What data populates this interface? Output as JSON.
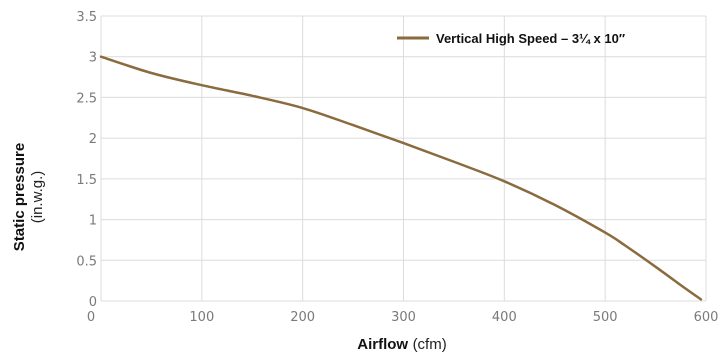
{
  "chart_data": {
    "type": "line",
    "xlabel_bold": "Airflow",
    "xlabel_unit": "(cfm)",
    "ylabel_bold": "Static pressure",
    "ylabel_unit": "(in.w.g.)",
    "xlim": [
      0,
      600
    ],
    "ylim": [
      0,
      3.5
    ],
    "x_ticks": [
      {
        "value": 0,
        "label": "0"
      },
      {
        "value": 100,
        "label": "100"
      },
      {
        "value": 200,
        "label": "200"
      },
      {
        "value": 300,
        "label": "300"
      },
      {
        "value": 400,
        "label": "400"
      },
      {
        "value": 500,
        "label": "500"
      },
      {
        "value": 600,
        "label": "600"
      }
    ],
    "y_ticks": [
      {
        "value": 0,
        "label": "0"
      },
      {
        "value": 0.5,
        "label": "0.5"
      },
      {
        "value": 1,
        "label": "1"
      },
      {
        "value": 1.5,
        "label": "1.5"
      },
      {
        "value": 2,
        "label": "2"
      },
      {
        "value": 2.5,
        "label": "2.5"
      },
      {
        "value": 3,
        "label": "3"
      },
      {
        "value": 3.5,
        "label": "3.5"
      }
    ],
    "grid": true,
    "legend_position": "top-right",
    "series": [
      {
        "name": "Vertical High Speed – 3¼ x 10″",
        "color": "#8b6b3e",
        "points": [
          [
            0,
            3.0
          ],
          [
            50,
            2.8
          ],
          [
            100,
            2.65
          ],
          [
            150,
            2.52
          ],
          [
            200,
            2.37
          ],
          [
            250,
            2.16
          ],
          [
            300,
            1.94
          ],
          [
            350,
            1.71
          ],
          [
            400,
            1.47
          ],
          [
            450,
            1.18
          ],
          [
            500,
            0.84
          ],
          [
            520,
            0.68
          ],
          [
            550,
            0.42
          ],
          [
            580,
            0.15
          ],
          [
            595,
            0.02
          ]
        ]
      }
    ]
  }
}
